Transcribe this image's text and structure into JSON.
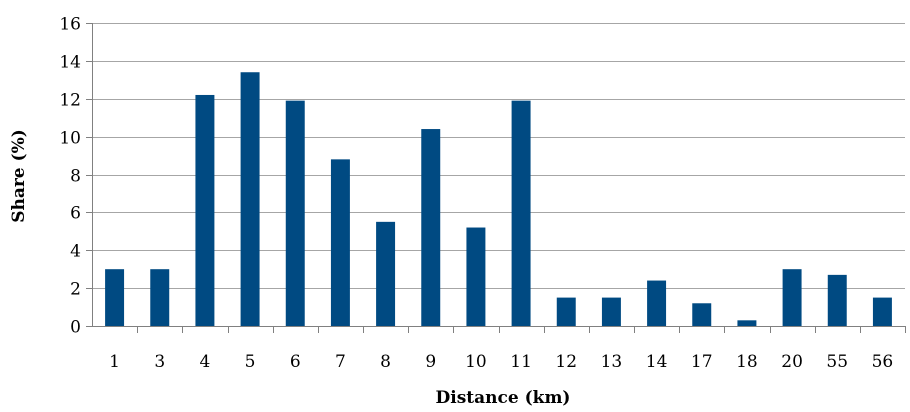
{
  "chart_data": {
    "type": "bar",
    "xlabel": "Distance (km)",
    "ylabel": "Share (%)",
    "ylim": [
      0,
      16
    ],
    "yticks": [
      0,
      2,
      4,
      6,
      8,
      10,
      12,
      14,
      16
    ],
    "grid": true,
    "categories": [
      "1",
      "3",
      "4",
      "5",
      "6",
      "7",
      "8",
      "9",
      "10",
      "11",
      "12",
      "13",
      "14",
      "17",
      "18",
      "20",
      "55",
      "56"
    ],
    "values": [
      3.0,
      3.0,
      12.2,
      13.4,
      11.9,
      8.8,
      5.5,
      10.4,
      5.2,
      11.9,
      1.5,
      1.5,
      2.4,
      1.2,
      0.3,
      3.0,
      2.7,
      1.5
    ],
    "bar_color": "#004a82",
    "grid_color": "#a6a6a6"
  }
}
